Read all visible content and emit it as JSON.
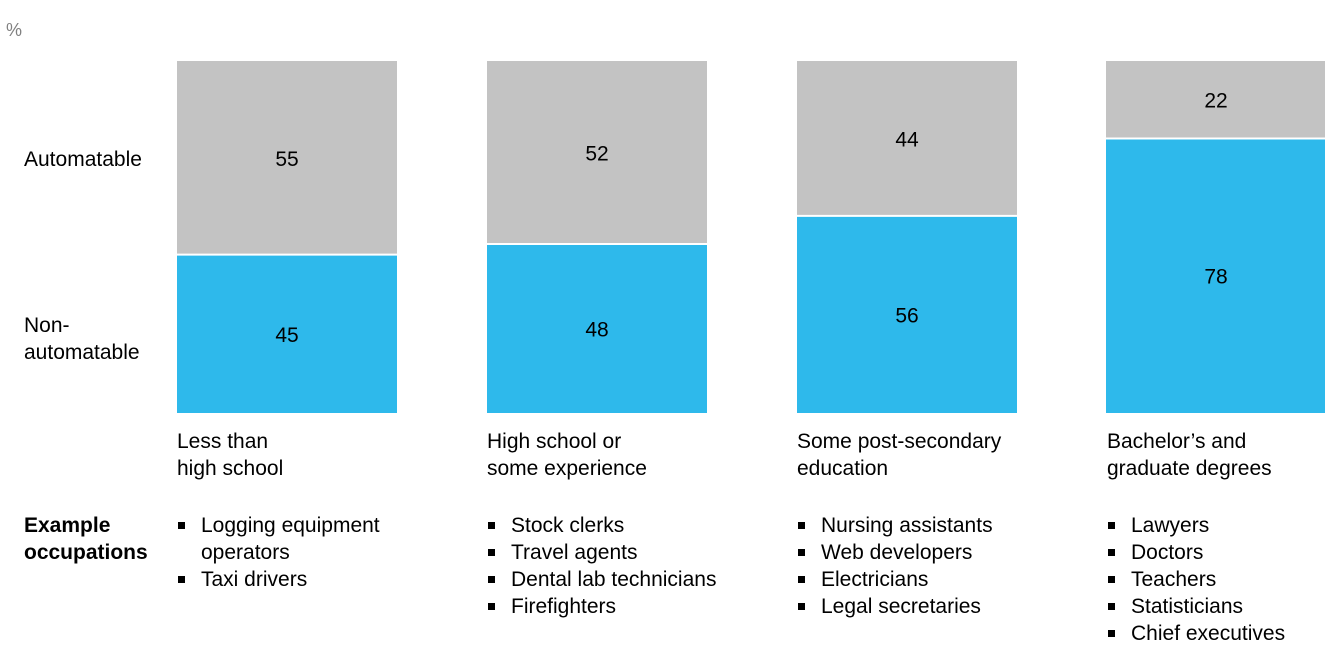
{
  "unit_label": "%",
  "chart_data": {
    "type": "bar",
    "stacked": true,
    "percent_stacked": true,
    "categories": [
      "Less than high school",
      "High school or some experience",
      "Some post-secondary education",
      "Bachelor’s and graduate degrees"
    ],
    "category_labels": [
      "Less than\nhigh school",
      "High school or\nsome experience",
      "Some post-secondary\neducation",
      "Bachelor’s and\ngraduate degrees"
    ],
    "series": [
      {
        "name": "Non-\nautomatable",
        "values": [
          45,
          48,
          56,
          78
        ],
        "color": "#2eb9eb"
      },
      {
        "name": "Automatable",
        "values": [
          55,
          52,
          44,
          22
        ],
        "color": "#c3c3c3"
      }
    ],
    "ylim": [
      0,
      100
    ],
    "grid": false,
    "title": "",
    "xlabel": "",
    "ylabel": "%"
  },
  "examples": {
    "title": "Example\noccupations",
    "lists": [
      [
        "Logging equipment\noperators",
        "Taxi drivers"
      ],
      [
        "Stock clerks",
        "Travel agents",
        "Dental lab technicians",
        "Firefighters"
      ],
      [
        "Nursing assistants",
        "Web developers",
        "Electricians",
        "Legal secretaries"
      ],
      [
        "Lawyers",
        "Doctors",
        "Teachers",
        "Statisticians",
        "Chief executives"
      ]
    ]
  }
}
